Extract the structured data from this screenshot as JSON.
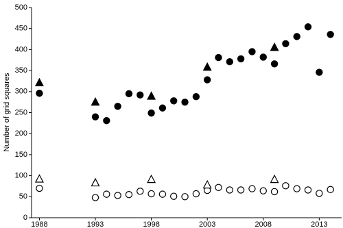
{
  "chart_data": {
    "type": "scatter",
    "y_label": "Number of grid squares",
    "xlim": [
      1987.3,
      2015
    ],
    "xticks": [
      1988,
      1993,
      1998,
      2003,
      2008,
      2013
    ],
    "ylim": [
      0,
      500
    ],
    "yticks": [
      0,
      50,
      100,
      150,
      200,
      250,
      300,
      350,
      400,
      450,
      500
    ],
    "series": [
      {
        "marker": "circle",
        "filled": true,
        "color": "#000000",
        "x": [
          1988,
          1993,
          1994,
          1995,
          1996,
          1997,
          1998,
          1999,
          2000,
          2001,
          2002,
          2003,
          2004,
          2005,
          2006,
          2007,
          2008,
          2009,
          2010,
          2011,
          2012,
          2013,
          2014
        ],
        "values": [
          296,
          240,
          231,
          265,
          295,
          292,
          249,
          261,
          278,
          275,
          288,
          328,
          381,
          371,
          378,
          395,
          382,
          366,
          414,
          431,
          454,
          346,
          436
        ]
      },
      {
        "marker": "triangle",
        "filled": true,
        "color": "#000000",
        "x": [
          1988,
          1993,
          1998,
          2003,
          2009
        ],
        "values": [
          321,
          275,
          289,
          358,
          405
        ]
      },
      {
        "marker": "circle",
        "filled": false,
        "color": "#000000",
        "x": [
          1988,
          1993,
          1994,
          1995,
          1996,
          1997,
          1998,
          1999,
          2000,
          2001,
          2002,
          2003,
          2004,
          2005,
          2006,
          2007,
          2008,
          2009,
          2010,
          2011,
          2012,
          2013,
          2014
        ],
        "values": [
          70,
          48,
          56,
          53,
          55,
          63,
          57,
          56,
          51,
          50,
          57,
          65,
          72,
          66,
          66,
          69,
          64,
          62,
          76,
          69,
          66,
          58,
          67
        ]
      },
      {
        "marker": "triangle",
        "filled": false,
        "color": "#000000",
        "x": [
          1988,
          1993,
          1998,
          2003,
          2009
        ],
        "values": [
          92,
          83,
          91,
          78,
          91
        ]
      }
    ]
  }
}
